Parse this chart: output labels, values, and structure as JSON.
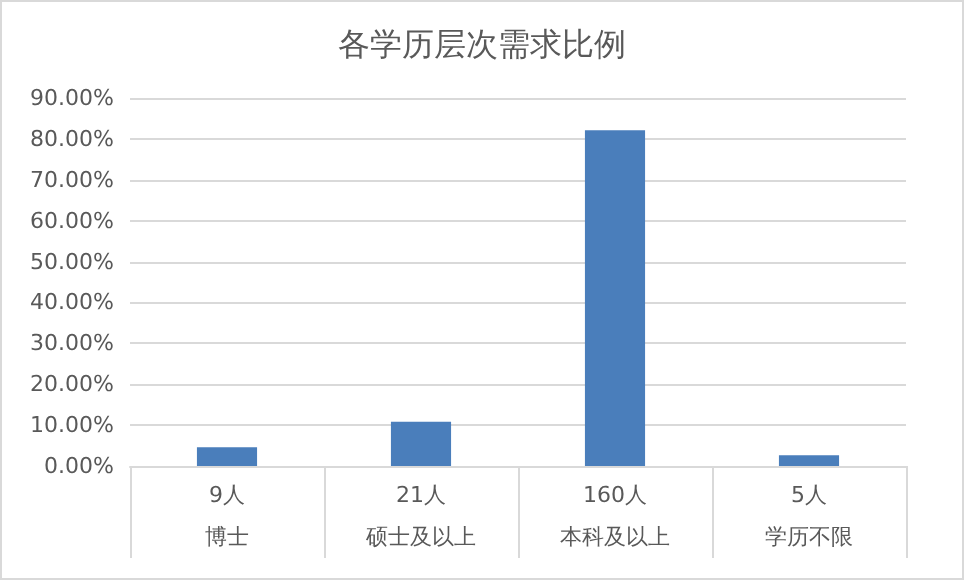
{
  "chart_data": {
    "type": "bar",
    "title": "各学历层次需求比例",
    "categories": [
      "博士",
      "硕士及以上",
      "本科及以上",
      "学历不限"
    ],
    "annotations": [
      "9人",
      "21人",
      "160人",
      "5人"
    ],
    "values": [
      4.6,
      10.8,
      82.1,
      2.6
    ],
    "color": "#4a7ebb",
    "ylim": [
      0,
      90
    ],
    "yticks": [
      {
        "value": 0,
        "label": "0.00%"
      },
      {
        "value": 10,
        "label": "10.00%"
      },
      {
        "value": 20,
        "label": "20.00%"
      },
      {
        "value": 30,
        "label": "30.00%"
      },
      {
        "value": 40,
        "label": "40.00%"
      },
      {
        "value": 50,
        "label": "50.00%"
      },
      {
        "value": 60,
        "label": "60.00%"
      },
      {
        "value": 70,
        "label": "70.00%"
      },
      {
        "value": 80,
        "label": "80.00%"
      },
      {
        "value": 90,
        "label": "90.00%"
      }
    ],
    "grid": "y"
  }
}
